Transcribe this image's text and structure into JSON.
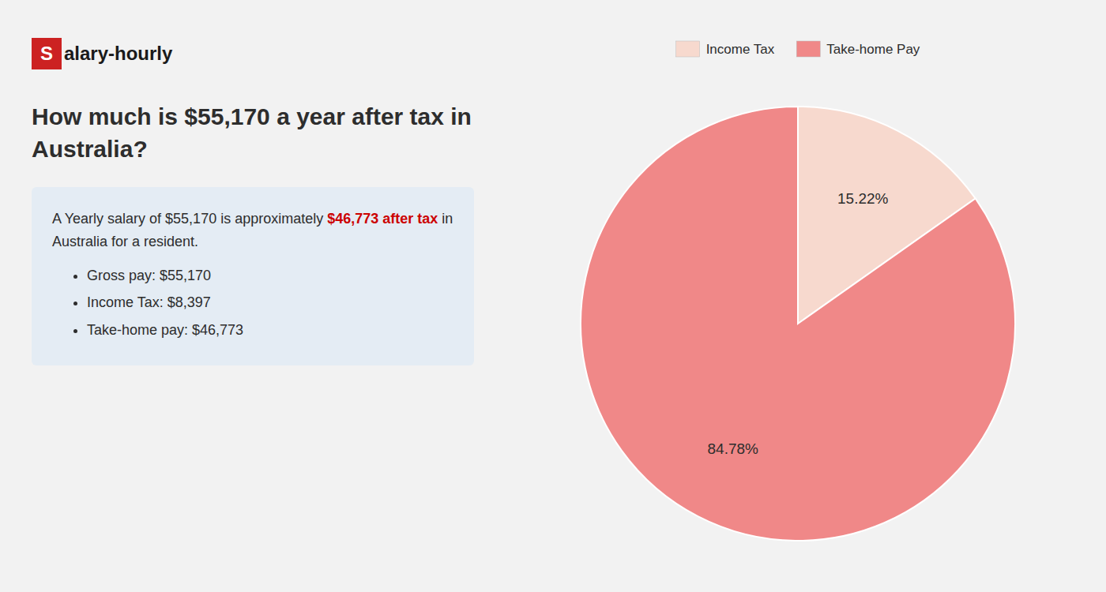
{
  "chart_data": {
    "type": "pie",
    "title": "How much is $55,170 a year after tax in Australia?",
    "annotations": [
      {
        "text": "S",
        "color": "#cc2222"
      },
      {
        "text": "alary-hourly"
      },
      {
        "text": "A Yearly salary of $55,170 is approximately "
      },
      {
        "text": "$46,773 after tax",
        "color": "#cc0000"
      },
      {
        "text": " in"
      },
      {
        "text": "Australia for a resident."
      },
      {
        "text": "Gross pay: $55,170"
      },
      {
        "text": "Income Tax: $8,397"
      },
      {
        "text": "Take-home pay: $46,773"
      }
    ],
    "categories": [
      "Income Tax",
      "Take-home Pay"
    ],
    "values": [
      15.22,
      84.78
    ],
    "value_labels": [
      "15.22%",
      "84.78%"
    ],
    "colors": [
      "#f7d9ce",
      "#f08888"
    ],
    "data_labels": true,
    "legend": "top"
  }
}
